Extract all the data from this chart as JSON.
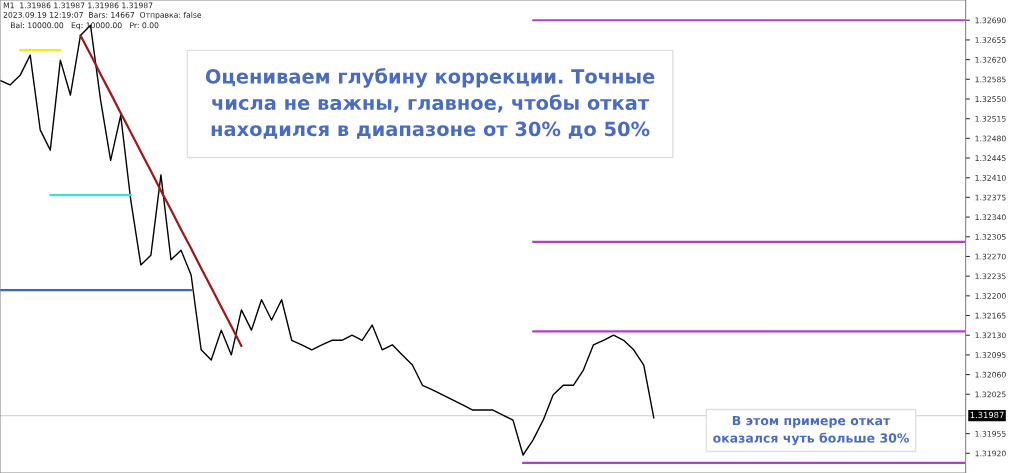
{
  "chart_data": {
    "type": "line",
    "categories": [
      null,
      null,
      null,
      null,
      null,
      null,
      null,
      null,
      null,
      null,
      null,
      null,
      null,
      null,
      null,
      null,
      null,
      null,
      null,
      null,
      null,
      null,
      null,
      null,
      null,
      null,
      null,
      null,
      null,
      null,
      null,
      null,
      null,
      null,
      null,
      null,
      null,
      null,
      null,
      null,
      null,
      null,
      null,
      null,
      null,
      null,
      null,
      null,
      null,
      null,
      null,
      null,
      null,
      null,
      null,
      null,
      null,
      null,
      null,
      null,
      null,
      null,
      null,
      null,
      null,
      null,
      null,
      null,
      null,
      null,
      null,
      null,
      null,
      null,
      null,
      null,
      null,
      null,
      null,
      null,
      null,
      null,
      null,
      null,
      null,
      null,
      null,
      null,
      null,
      null,
      null,
      null,
      null,
      null,
      null,
      null,
      null
    ],
    "series": [
      {
        "color": "#000000",
        "values": [
          1.32583,
          1.32575,
          1.32592,
          1.32628,
          1.32495,
          1.32459,
          1.32619,
          1.32557,
          1.32663,
          1.32681,
          1.32548,
          1.32441,
          1.32521,
          1.3237,
          1.32255,
          1.32272,
          1.32415,
          1.32264,
          1.32281,
          1.32237,
          1.32104,
          1.32086,
          1.32139,
          1.32095,
          1.32175,
          1.32139,
          1.32193,
          1.32157,
          1.32193,
          1.32121,
          1.32113,
          1.32104,
          1.32113,
          1.32121,
          1.32121,
          1.3213,
          1.32121,
          1.32148,
          1.32104,
          1.32113,
          1.32095,
          1.32077,
          1.32041,
          1.32033,
          1.32024,
          1.32015,
          1.32006,
          1.31997,
          1.31997,
          1.31997,
          1.31988,
          1.31979,
          1.31917,
          1.31944,
          1.31979,
          1.32024,
          1.32041,
          1.32041,
          1.32068,
          1.32113,
          1.32121,
          1.3213,
          1.32121,
          1.32104,
          1.32077,
          1.31983,
          null,
          null,
          null,
          null,
          null,
          null,
          null,
          null,
          null,
          null,
          null,
          null,
          null,
          null,
          null,
          null,
          null,
          null,
          null,
          null,
          null,
          null,
          null,
          null,
          null,
          null,
          null,
          null,
          null,
          null,
          null
        ]
      },
      {
        "color": "#a01818",
        "values": [
          null,
          null,
          null,
          null,
          null,
          null,
          null,
          null,
          1.32663,
          1.32629,
          1.32594,
          1.3256,
          1.32525,
          1.32491,
          1.32456,
          1.32422,
          1.32387,
          1.32353,
          1.32318,
          1.32284,
          1.32249,
          1.32215,
          1.3218,
          1.32146,
          1.32111,
          null,
          null,
          null,
          null,
          null,
          null,
          null,
          null,
          null,
          null,
          null,
          null,
          null,
          null,
          null,
          null,
          null,
          null,
          null,
          null,
          null,
          null,
          null,
          null,
          null,
          null,
          null,
          null,
          null,
          null,
          null,
          null,
          null,
          null,
          null,
          null,
          null,
          null,
          null,
          null,
          null,
          null,
          null,
          null,
          null,
          null,
          null,
          null,
          null,
          null,
          null,
          null,
          null,
          null,
          null,
          null,
          null,
          null,
          null,
          null,
          null,
          null,
          null,
          null,
          null,
          null,
          null,
          null,
          null,
          null,
          null,
          null
        ]
      },
      {
        "color": "#3a66c8",
        "values": [
          1.3221,
          1.3221,
          1.3221,
          1.3221,
          1.3221,
          1.3221,
          1.3221,
          1.3221,
          1.3221,
          1.3221,
          1.3221,
          1.3221,
          1.3221,
          1.3221,
          1.3221,
          1.3221,
          1.3221,
          1.3221,
          1.3221,
          1.3221,
          null,
          null,
          null,
          null,
          null,
          null,
          null,
          null,
          null,
          null,
          null,
          null,
          null,
          null,
          null,
          null,
          null,
          null,
          null,
          null,
          null,
          null,
          null,
          null,
          null,
          null,
          null,
          null,
          null,
          null,
          null,
          null,
          null,
          null,
          null,
          null,
          null,
          null,
          null,
          null,
          null,
          null,
          null,
          null,
          null,
          null,
          null,
          null,
          null,
          null,
          null,
          null,
          null,
          null,
          null,
          null,
          null,
          null,
          null,
          null,
          null,
          null,
          null,
          null,
          null,
          null,
          null,
          null,
          null,
          null,
          null,
          null,
          null,
          null,
          null,
          null,
          null
        ]
      },
      {
        "color": "#40e0d0",
        "values": [
          null,
          null,
          null,
          null,
          null,
          1.32379,
          1.32379,
          1.32379,
          1.32379,
          1.32379,
          1.32379,
          1.32379,
          1.32379,
          1.32379,
          null,
          null,
          null,
          null,
          null,
          null,
          null,
          null,
          null,
          null,
          null,
          null,
          null,
          null,
          null,
          null,
          null,
          null,
          null,
          null,
          null,
          null,
          null,
          null,
          null,
          null,
          null,
          null,
          null,
          null,
          null,
          null,
          null,
          null,
          null,
          null,
          null,
          null,
          null,
          null,
          null,
          null,
          null,
          null,
          null,
          null,
          null,
          null,
          null,
          null,
          null,
          null,
          null,
          null,
          null,
          null,
          null,
          null,
          null,
          null,
          null,
          null,
          null,
          null,
          null,
          null,
          null,
          null,
          null,
          null,
          null,
          null,
          null,
          null,
          null,
          null,
          null,
          null,
          null,
          null,
          null,
          null,
          null
        ]
      },
      {
        "color": "#f0f000",
        "values": [
          null,
          null,
          1.32637,
          1.32637,
          1.32637,
          1.32637,
          1.32637,
          null,
          null,
          null,
          null,
          null,
          null,
          null,
          null,
          null,
          null,
          null,
          null,
          null,
          null,
          null,
          null,
          null,
          null,
          null,
          null,
          null,
          null,
          null,
          null,
          null,
          null,
          null,
          null,
          null,
          null,
          null,
          null,
          null,
          null,
          null,
          null,
          null,
          null,
          null,
          null,
          null,
          null,
          null,
          null,
          null,
          null,
          null,
          null,
          null,
          null,
          null,
          null,
          null,
          null,
          null,
          null,
          null,
          null,
          null,
          null,
          null,
          null,
          null,
          null,
          null,
          null,
          null,
          null,
          null,
          null,
          null,
          null,
          null,
          null,
          null,
          null,
          null,
          null,
          null,
          null,
          null,
          null,
          null,
          null,
          null,
          null,
          null,
          null,
          null,
          null
        ]
      },
      {
        "color": "#b040c8",
        "values": [
          null,
          null,
          null,
          null,
          null,
          null,
          null,
          null,
          null,
          null,
          null,
          null,
          null,
          null,
          null,
          null,
          null,
          null,
          null,
          null,
          null,
          null,
          null,
          null,
          null,
          null,
          null,
          null,
          null,
          null,
          null,
          null,
          null,
          null,
          null,
          null,
          null,
          null,
          null,
          null,
          null,
          null,
          null,
          null,
          null,
          null,
          null,
          null,
          null,
          null,
          null,
          null,
          null,
          1.3269,
          1.3269,
          1.3269,
          1.3269,
          1.3269,
          1.3269,
          1.3269,
          1.3269,
          1.3269,
          1.3269,
          1.3269,
          1.3269,
          1.3269,
          1.3269,
          1.3269,
          1.3269,
          1.3269,
          1.3269,
          1.3269,
          1.3269,
          1.3269,
          1.3269,
          1.3269,
          1.3269,
          1.3269,
          1.3269,
          1.3269,
          1.3269,
          1.3269,
          1.3269,
          1.3269,
          1.3269,
          1.3269,
          1.3269,
          1.3269,
          1.3269,
          1.3269,
          1.3269,
          1.3269,
          1.3269,
          1.3269,
          1.3269,
          1.3269,
          1.3269
        ]
      },
      {
        "color": "#b040c8",
        "values": [
          null,
          null,
          null,
          null,
          null,
          null,
          null,
          null,
          null,
          null,
          null,
          null,
          null,
          null,
          null,
          null,
          null,
          null,
          null,
          null,
          null,
          null,
          null,
          null,
          null,
          null,
          null,
          null,
          null,
          null,
          null,
          null,
          null,
          null,
          null,
          null,
          null,
          null,
          null,
          null,
          null,
          null,
          null,
          null,
          null,
          null,
          null,
          null,
          null,
          null,
          null,
          null,
          null,
          1.32296,
          1.32296,
          1.32296,
          1.32296,
          1.32296,
          1.32296,
          1.32296,
          1.32296,
          1.32296,
          1.32296,
          1.32296,
          1.32296,
          1.32296,
          1.32296,
          1.32296,
          1.32296,
          1.32296,
          1.32296,
          1.32296,
          1.32296,
          1.32296,
          1.32296,
          1.32296,
          1.32296,
          1.32296,
          1.32296,
          1.32296,
          1.32296,
          1.32296,
          1.32296,
          1.32296,
          1.32296,
          1.32296,
          1.32296,
          1.32296,
          1.32296,
          1.32296,
          1.32296,
          1.32296,
          1.32296,
          1.32296,
          1.32296,
          1.32296,
          1.32296
        ]
      },
      {
        "color": "#b040c8",
        "values": [
          null,
          null,
          null,
          null,
          null,
          null,
          null,
          null,
          null,
          null,
          null,
          null,
          null,
          null,
          null,
          null,
          null,
          null,
          null,
          null,
          null,
          null,
          null,
          null,
          null,
          null,
          null,
          null,
          null,
          null,
          null,
          null,
          null,
          null,
          null,
          null,
          null,
          null,
          null,
          null,
          null,
          null,
          null,
          null,
          null,
          null,
          null,
          null,
          null,
          null,
          null,
          null,
          null,
          1.32137,
          1.32137,
          1.32137,
          1.32137,
          1.32137,
          1.32137,
          1.32137,
          1.32137,
          1.32137,
          1.32137,
          1.32137,
          1.32137,
          1.32137,
          1.32137,
          1.32137,
          1.32137,
          1.32137,
          1.32137,
          1.32137,
          1.32137,
          1.32137,
          1.32137,
          1.32137,
          1.32137,
          1.32137,
          1.32137,
          1.32137,
          1.32137,
          1.32137,
          1.32137,
          1.32137,
          1.32137,
          1.32137,
          1.32137,
          1.32137,
          1.32137,
          1.32137,
          1.32137,
          1.32137,
          1.32137,
          1.32137,
          1.32137,
          1.32137,
          1.32137
        ]
      },
      {
        "color": "#b040c8",
        "values": [
          null,
          null,
          null,
          null,
          null,
          null,
          null,
          null,
          null,
          null,
          null,
          null,
          null,
          null,
          null,
          null,
          null,
          null,
          null,
          null,
          null,
          null,
          null,
          null,
          null,
          null,
          null,
          null,
          null,
          null,
          null,
          null,
          null,
          null,
          null,
          null,
          null,
          null,
          null,
          null,
          null,
          null,
          null,
          null,
          null,
          null,
          null,
          null,
          null,
          null,
          null,
          null,
          1.31903,
          1.31903,
          1.31903,
          1.31903,
          1.31903,
          1.31903,
          1.31903,
          1.31903,
          1.31903,
          1.31903,
          1.31903,
          1.31903,
          1.31903,
          1.31903,
          1.31903,
          1.31903,
          1.31903,
          1.31903,
          1.31903,
          1.31903,
          1.31903,
          1.31903,
          1.31903,
          1.31903,
          1.31903,
          1.31903,
          1.31903,
          1.31903,
          1.31903,
          1.31903,
          1.31903,
          1.31903,
          1.31903,
          1.31903,
          1.31903,
          1.31903,
          1.31903,
          1.31903,
          1.31903,
          1.31903,
          1.31903,
          1.31903,
          1.31903,
          1.31903,
          1.31903
        ]
      }
    ],
    "ylim": [
      1.31885,
      1.32726
    ],
    "yticks": [
      {
        "value": 1.3269,
        "label": "1.32690"
      },
      {
        "value": 1.32655,
        "label": "1.32655"
      },
      {
        "value": 1.3262,
        "label": "1.32620"
      },
      {
        "value": 1.32585,
        "label": "1.32585"
      },
      {
        "value": 1.3255,
        "label": "1.32550"
      },
      {
        "value": 1.32515,
        "label": "1.32515"
      },
      {
        "value": 1.3248,
        "label": "1.32480"
      },
      {
        "value": 1.32445,
        "label": "1.32445"
      },
      {
        "value": 1.3241,
        "label": "1.32410"
      },
      {
        "value": 1.32375,
        "label": "1.32375"
      },
      {
        "value": 1.3234,
        "label": "1.32340"
      },
      {
        "value": 1.32305,
        "label": "1.32305"
      },
      {
        "value": 1.3227,
        "label": "1.32270"
      },
      {
        "value": 1.32235,
        "label": "1.32235"
      },
      {
        "value": 1.322,
        "label": "1.32200"
      },
      {
        "value": 1.32165,
        "label": "1.32165"
      },
      {
        "value": 1.3213,
        "label": "1.32130"
      },
      {
        "value": 1.32095,
        "label": "1.32095"
      },
      {
        "value": 1.3206,
        "label": "1.32060"
      },
      {
        "value": 1.32025,
        "label": "1.32025"
      },
      {
        "value": 1.31955,
        "label": "1.31955"
      },
      {
        "value": 1.3192,
        "label": "1.31920"
      }
    ],
    "ref_lines": [
      {
        "axis": "y",
        "value": 1.31987,
        "label": "1.31987",
        "color": "#d8d8d8"
      }
    ],
    "grid": false,
    "annotations": [
      "M1  1.31986 1.31987 1.31986 1.31987",
      "2023.09.19 12:19:07  Bars: 14667  Отправка: false",
      "Bal: 10000.00   Eq: 10000.00   Pr: 0.00",
      "Оцениваем глубину коррекции. Точные\nчисла не важны, главное, чтобы откат\nнаходился в диапазоне от 30% до 50%",
      "В этом примере откат\nоказался чуть больше 30%"
    ]
  }
}
